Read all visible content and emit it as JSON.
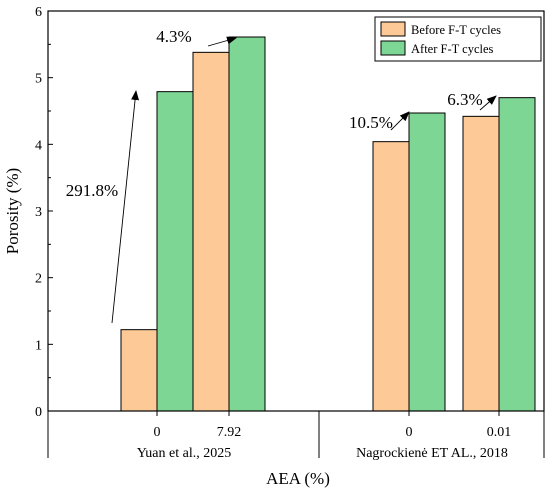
{
  "chart_data": {
    "type": "bar",
    "xlabel": "AEA (%)",
    "ylabel": "Porosity (%)",
    "ylim": [
      0,
      6
    ],
    "yticks": [
      "0",
      "1",
      "2",
      "3",
      "4",
      "5",
      "6"
    ],
    "grid": false,
    "legend": {
      "placement": "top-right"
    },
    "groups": [
      {
        "label": "Yuan et al., 2025",
        "categories": [
          "0",
          "7.92"
        ]
      },
      {
        "label": "Nagrockienė ET AL., 2018",
        "categories": [
          "0",
          "0.01"
        ]
      }
    ],
    "series": [
      {
        "name": "Before F-T cycles",
        "color": "#fdc997",
        "values": [
          1.22,
          5.38,
          4.04,
          4.42
        ]
      },
      {
        "name": "After F-T cycles",
        "color": "#7ed695",
        "values": [
          4.79,
          5.61,
          4.47,
          4.7
        ]
      }
    ],
    "annotations": [
      {
        "text": "291.8%",
        "category_index": 0
      },
      {
        "text": "4.3%",
        "category_index": 1
      },
      {
        "text": "10.5%",
        "category_index": 2
      },
      {
        "text": "6.3%",
        "category_index": 3
      }
    ]
  }
}
